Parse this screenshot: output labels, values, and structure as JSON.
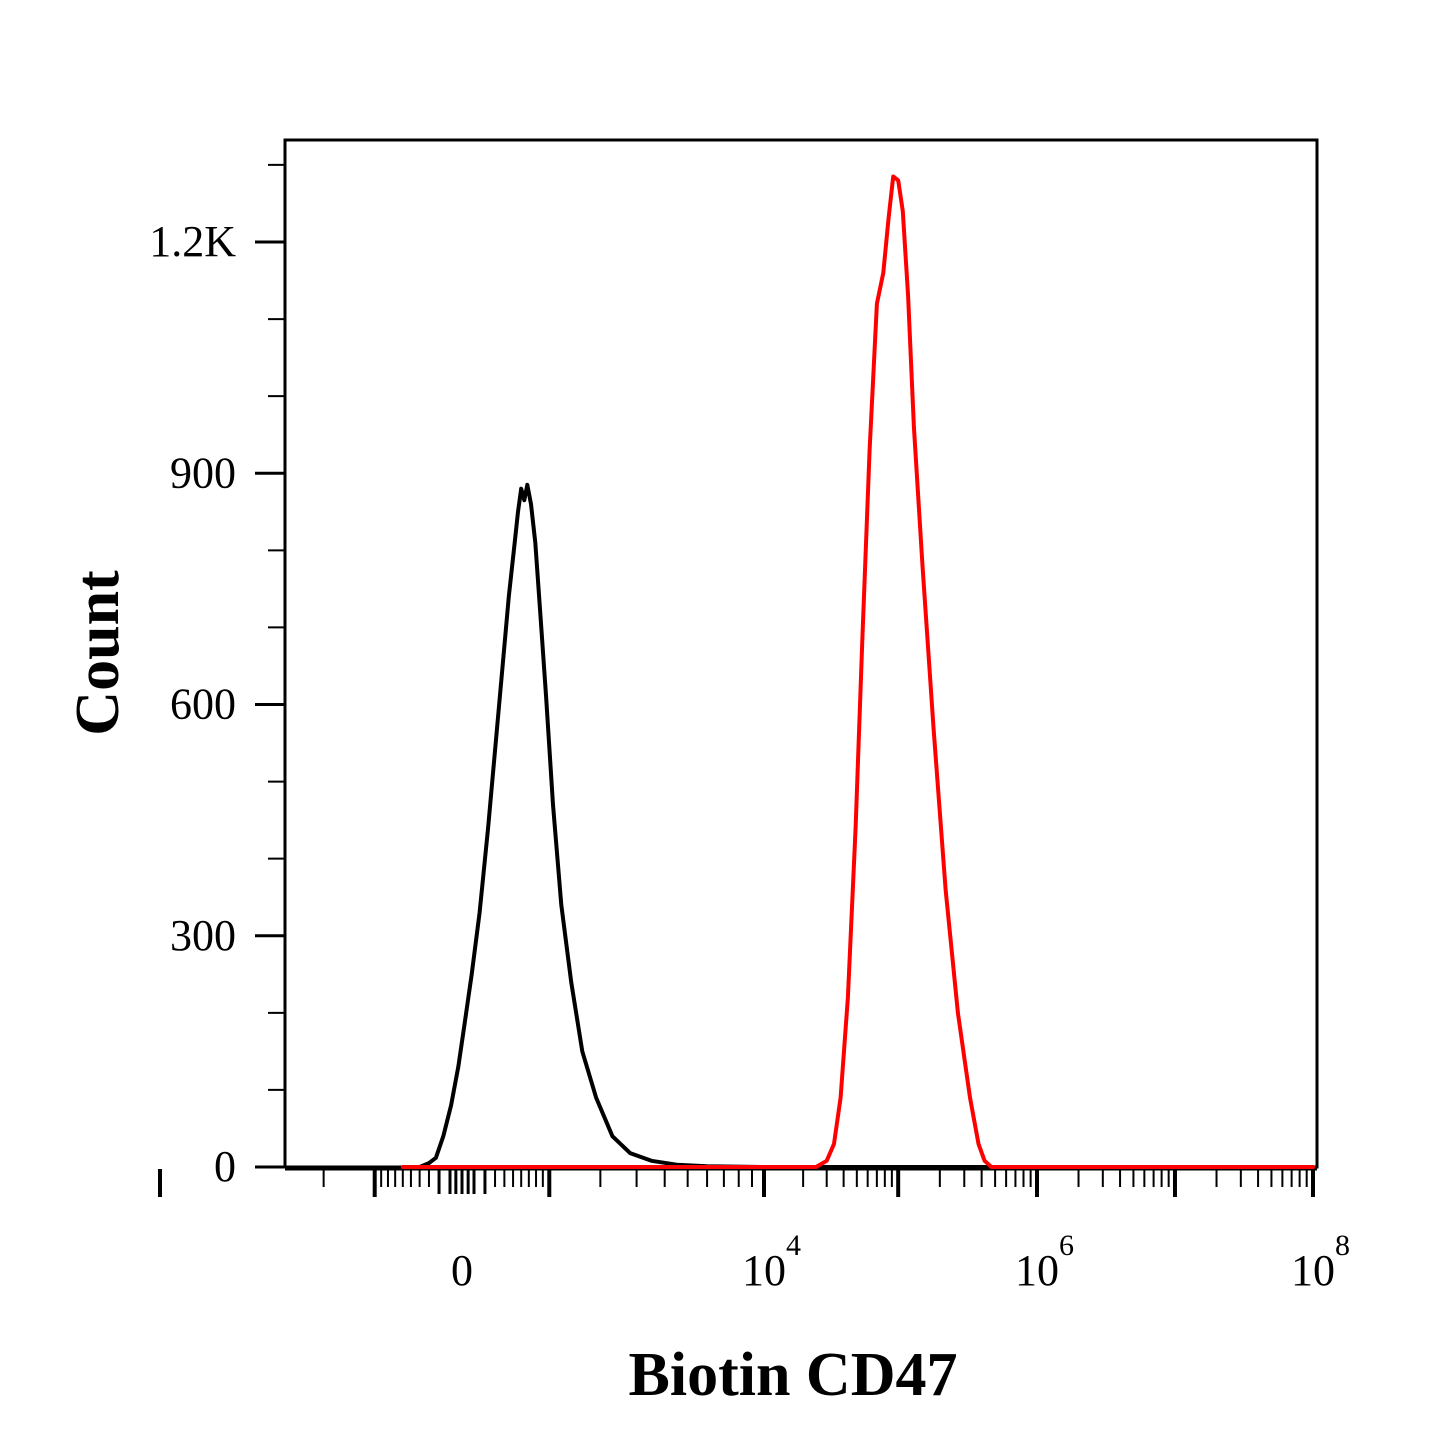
{
  "chart_data": {
    "type": "line",
    "title": "",
    "xlabel": "Biotin CD47",
    "ylabel": "Count",
    "x_scale": "biexponential",
    "ylim": [
      0,
      1350
    ],
    "y_ticks": [
      {
        "value": 0,
        "label": "0"
      },
      {
        "value": 300,
        "label": "300"
      },
      {
        "value": 600,
        "label": "600"
      },
      {
        "value": 900,
        "label": "900"
      },
      {
        "value": 1200,
        "label": "1.2K"
      }
    ],
    "x_ticks": [
      {
        "value": 0,
        "label": "0",
        "exponent": ""
      },
      {
        "value": 10000,
        "label": "10",
        "exponent": "4"
      },
      {
        "value": 1000000,
        "label": "10",
        "exponent": "6"
      },
      {
        "value": 100000000,
        "label": "10",
        "exponent": "8"
      }
    ],
    "grid": false,
    "legend": "none",
    "series": [
      {
        "color": "#000000",
        "points": [
          [
            -400,
            0
          ],
          [
            -300,
            5
          ],
          [
            -230,
            12
          ],
          [
            -160,
            40
          ],
          [
            -90,
            80
          ],
          [
            -30,
            130
          ],
          [
            20,
            185
          ],
          [
            80,
            250
          ],
          [
            150,
            330
          ],
          [
            230,
            440
          ],
          [
            300,
            540
          ],
          [
            380,
            650
          ],
          [
            450,
            740
          ],
          [
            520,
            810
          ],
          [
            560,
            850
          ],
          [
            600,
            880
          ],
          [
            640,
            865
          ],
          [
            680,
            885
          ],
          [
            730,
            860
          ],
          [
            790,
            810
          ],
          [
            860,
            720
          ],
          [
            950,
            610
          ],
          [
            1060,
            470
          ],
          [
            1200,
            340
          ],
          [
            1380,
            240
          ],
          [
            1600,
            150
          ],
          [
            1900,
            90
          ],
          [
            2300,
            40
          ],
          [
            2800,
            18
          ],
          [
            3500,
            8
          ],
          [
            4500,
            3
          ],
          [
            6000,
            1
          ],
          [
            10000,
            0
          ],
          [
            100000000,
            0
          ]
        ]
      },
      {
        "color": "#ff0000",
        "points": [
          [
            -600,
            0
          ],
          [
            25000,
            0
          ],
          [
            30000,
            8
          ],
          [
            34000,
            30
          ],
          [
            38000,
            90
          ],
          [
            43000,
            220
          ],
          [
            49000,
            440
          ],
          [
            55000,
            690
          ],
          [
            62000,
            930
          ],
          [
            70000,
            1120
          ],
          [
            78000,
            1160
          ],
          [
            85000,
            1230
          ],
          [
            92000,
            1285
          ],
          [
            100000,
            1280
          ],
          [
            108000,
            1240
          ],
          [
            118000,
            1130
          ],
          [
            130000,
            960
          ],
          [
            150000,
            780
          ],
          [
            180000,
            570
          ],
          [
            220000,
            360
          ],
          [
            270000,
            200
          ],
          [
            330000,
            90
          ],
          [
            380000,
            30
          ],
          [
            420000,
            8
          ],
          [
            470000,
            0
          ],
          [
            100000000,
            0
          ]
        ]
      }
    ]
  }
}
